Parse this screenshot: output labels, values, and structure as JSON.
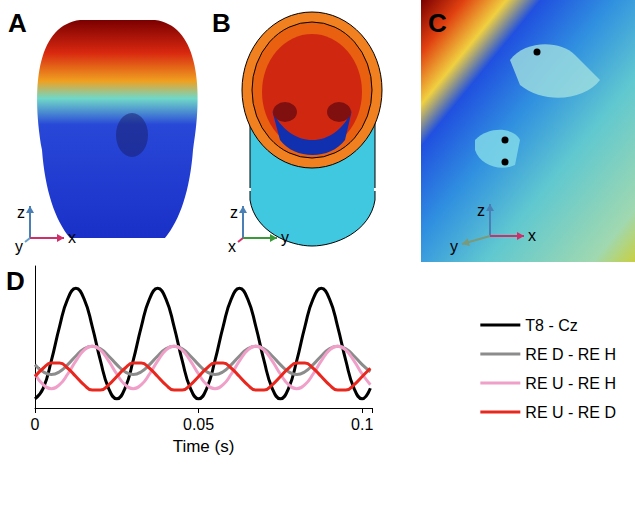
{
  "panels": [
    {
      "letter": "A",
      "axes": [
        {
          "label": "z",
          "direction": "up",
          "color": "#4a7fb5"
        },
        {
          "label": "y",
          "direction": "in",
          "color": "#6aa0c8"
        },
        {
          "label": "x",
          "direction": "right",
          "color": "#d0306a"
        }
      ]
    },
    {
      "letter": "B",
      "axes": [
        {
          "label": "z",
          "direction": "up",
          "color": "#4a7fb5"
        },
        {
          "label": "x",
          "direction": "in",
          "color": "#d0306a"
        },
        {
          "label": "y",
          "direction": "right",
          "color": "#3a9a3a"
        }
      ]
    },
    {
      "letter": "C",
      "axes": [
        {
          "label": "z",
          "direction": "up",
          "color": "#4a7fb5"
        },
        {
          "label": "y",
          "direction": "left",
          "color": "#7a9a7a"
        },
        {
          "label": "x",
          "direction": "right",
          "color": "#d0306a"
        }
      ]
    },
    {
      "letter": "D"
    }
  ],
  "chart_data": {
    "type": "line",
    "xlabel": "Time (s)",
    "x": [
      0,
      0.0025,
      0.005,
      0.0075,
      0.01,
      0.0125,
      0.015,
      0.0175,
      0.02,
      0.0225,
      0.025,
      0.0275,
      0.03,
      0.0325,
      0.035,
      0.0375,
      0.04,
      0.0425,
      0.045,
      0.0475,
      0.05,
      0.0525,
      0.055,
      0.0575,
      0.06,
      0.0625,
      0.065,
      0.0675,
      0.07,
      0.0725,
      0.075,
      0.0775,
      0.08,
      0.0825,
      0.085,
      0.0875,
      0.09,
      0.0925,
      0.095,
      0.0975,
      0.1,
      0.1025
    ],
    "series": [
      {
        "name": "T8 - Cz",
        "color": "#000000",
        "values": [
          -3.1,
          -2.06,
          0.67,
          4.03,
          6.76,
          7.8,
          6.76,
          4.03,
          0.67,
          -2.06,
          -3.1,
          -2.06,
          0.67,
          4.03,
          6.76,
          7.8,
          6.76,
          4.03,
          0.67,
          -2.06,
          -3.1,
          -2.06,
          0.67,
          4.03,
          6.76,
          7.8,
          6.76,
          4.03,
          0.67,
          -2.06,
          -3.1,
          -2.06,
          0.67,
          4.03,
          6.76,
          7.8,
          6.76,
          4.03,
          0.67,
          -2.06,
          -3.1,
          -2.06
        ]
      },
      {
        "name": "RE D - RE H",
        "color": "#8c8c8c",
        "values": [
          0.27,
          -0.43,
          -0.7,
          -0.43,
          0.27,
          1.13,
          1.83,
          2.1,
          1.83,
          1.13,
          0.27,
          -0.43,
          -0.7,
          -0.43,
          0.27,
          1.13,
          1.83,
          2.1,
          1.83,
          1.13,
          0.27,
          -0.43,
          -0.7,
          -0.43,
          0.27,
          1.13,
          1.83,
          2.1,
          1.83,
          1.13,
          0.27,
          -0.43,
          -0.7,
          -0.43,
          0.27,
          1.13,
          1.83,
          2.1,
          1.83,
          1.13,
          0.27,
          -0.43
        ]
      },
      {
        "name": "RE U - RE H",
        "color": "#f0a0c8",
        "values": [
          -0.65,
          -1.7,
          -2.1,
          -1.7,
          -0.65,
          0.65,
          1.7,
          2.1,
          1.7,
          0.65,
          -0.65,
          -1.7,
          -2.1,
          -1.7,
          -0.65,
          0.65,
          1.7,
          2.1,
          1.7,
          0.65,
          -0.65,
          -1.7,
          -2.1,
          -1.7,
          -0.65,
          0.65,
          1.7,
          2.1,
          1.7,
          0.65,
          -0.65,
          -1.7,
          -2.1,
          -1.7,
          -0.65,
          0.65,
          1.7,
          2.1,
          1.7,
          0.65,
          -0.65,
          -1.7
        ]
      },
      {
        "name": "RE U - RE D",
        "color": "#e8281e",
        "values": [
          -0.9,
          -0.08,
          0.43,
          0.43,
          -0.08,
          -0.9,
          -1.72,
          -2.23,
          -2.23,
          -1.72,
          -0.9,
          -0.08,
          0.43,
          0.43,
          -0.08,
          -0.9,
          -1.72,
          -2.23,
          -2.23,
          -1.72,
          -0.9,
          -0.08,
          0.43,
          0.43,
          -0.08,
          -0.9,
          -1.72,
          -2.23,
          -2.23,
          -1.72,
          -0.9,
          -0.08,
          0.43,
          0.43,
          -0.08,
          -0.9,
          -1.72,
          -2.23,
          -2.23,
          -1.72,
          -0.9,
          -0.08
        ]
      }
    ],
    "xlim": [
      0,
      0.103
    ],
    "xticks": [
      0,
      0.05,
      0.1
    ],
    "ylim": [
      -4,
      10
    ],
    "yticks": [
      0
    ],
    "tick_labels": "x",
    "grid": false,
    "legend": "right"
  }
}
